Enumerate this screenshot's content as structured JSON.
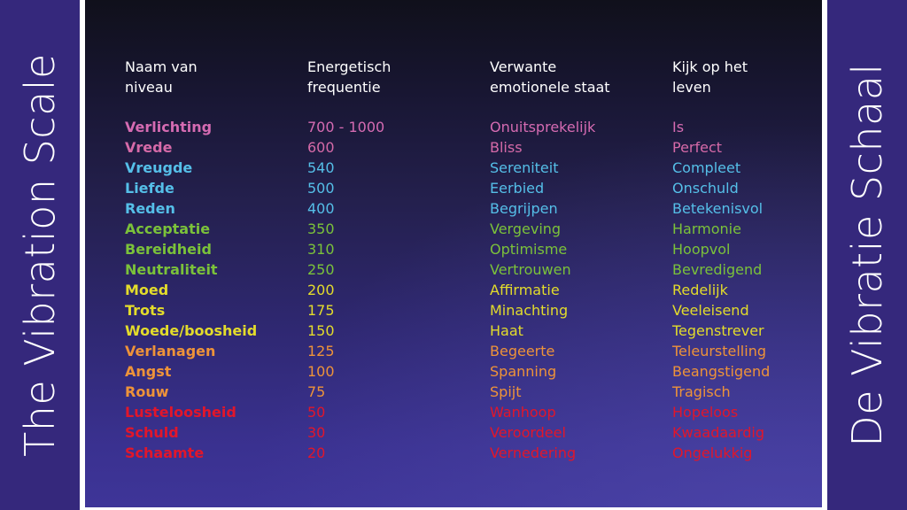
{
  "left_panel": {
    "title": "The Vibration Scale"
  },
  "right_panel": {
    "title": "De Vibratie Schaal"
  },
  "colors": {
    "panel": "#35287c",
    "header": "#ffffff",
    "pink": "#d56bb2",
    "blue": "#55bfe8",
    "green": "#7bc23a",
    "yellow": "#e3dc2b",
    "orange": "#ee9339",
    "red": "#e2162a"
  },
  "table": {
    "headers": [
      {
        "line1": "Naam van",
        "line2": "niveau"
      },
      {
        "line1": "Energetisch",
        "line2": "frequentie"
      },
      {
        "line1": "Verwante",
        "line2": "emotionele staat"
      },
      {
        "line1": "Kijk op het",
        "line2": "leven"
      }
    ],
    "rows": [
      {
        "level": "Verlichting",
        "frequency": "700 - 1000",
        "emotion": "Onuitsprekelijk",
        "view": "Is",
        "color": "#d56bb2"
      },
      {
        "level": "Vrede",
        "frequency": "600",
        "emotion": "Bliss",
        "view": "Perfect",
        "color": "#d66aa8"
      },
      {
        "level": "Vreugde",
        "frequency": "540",
        "emotion": "Sereniteit",
        "view": "Compleet",
        "color": "#55bfe8"
      },
      {
        "level": "Liefde",
        "frequency": "500",
        "emotion": "Eerbied",
        "view": "Onschuld",
        "color": "#55bfe8"
      },
      {
        "level": "Reden",
        "frequency": "400",
        "emotion": "Begrijpen",
        "view": "Betekenisvol",
        "color": "#55bfe8"
      },
      {
        "level": "Acceptatie",
        "frequency": "350",
        "emotion": "Vergeving",
        "view": "Harmonie",
        "color": "#7bc23a"
      },
      {
        "level": "Bereidheid",
        "frequency": "310",
        "emotion": "Optimisme",
        "view": "Hoopvol",
        "color": "#7bc23a"
      },
      {
        "level": "Neutraliteit",
        "frequency": "250",
        "emotion": "Vertrouwen",
        "view": "Bevredigend",
        "color": "#7bc23a"
      },
      {
        "level": "Moed",
        "frequency": "200",
        "emotion": "Affirmatie",
        "view": "Redelijk",
        "color": "#e3dc2b"
      },
      {
        "level": "Trots",
        "frequency": "175",
        "emotion": "Minachting",
        "view": "Veeleisend",
        "color": "#e3dc2b"
      },
      {
        "level": "Woede/boosheid",
        "frequency": "150",
        "emotion": "Haat",
        "view": "Tegenstrever",
        "color": "#e3dc2b"
      },
      {
        "level": "Verlanagen",
        "frequency": "125",
        "emotion": "Begeerte",
        "view": "Teleurstelling",
        "color": "#ee9339"
      },
      {
        "level": "Angst",
        "frequency": "100",
        "emotion": "Spanning",
        "view": "Beangstigend",
        "color": "#ee9339"
      },
      {
        "level": "Rouw",
        "frequency": "75",
        "emotion": "Spijt",
        "view": "Tragisch",
        "color": "#ee9339"
      },
      {
        "level": "Lusteloosheid",
        "frequency": "50",
        "emotion": "Wanhoop",
        "view": "Hopeloos",
        "color": "#e2162a"
      },
      {
        "level": "Schuld",
        "frequency": "30",
        "emotion": "Veroordeel",
        "view": "Kwaadaardig",
        "color": "#e2162a"
      },
      {
        "level": "Schaamte",
        "frequency": "20",
        "emotion": "Vernedering",
        "view": "Ongelukkig",
        "color": "#e2162a"
      }
    ]
  }
}
